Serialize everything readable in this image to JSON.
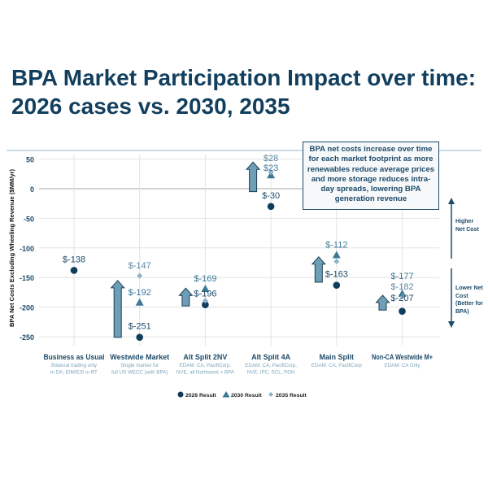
{
  "title_lines": [
    "BPA Market Participation Impact over time:",
    "2026 cases vs. 2030, 2035"
  ],
  "annotation": "BPA net costs increase over time for each market footprint as more renewables reduce average prices and more storage reduces intra-day spreads, lowering BPA generation revenue",
  "side_labels": {
    "higher": "Higher Net Cost",
    "lower": "Lower Net Cost (Better for BPA)"
  },
  "colors": {
    "c2026": "#0f3d5c",
    "c2030": "#3e7896",
    "c2035": "#8fb3c6",
    "arrow": "#6e9fb6",
    "title": "#123f5e"
  },
  "chart_data": {
    "type": "scatter",
    "title": "BPA Market Participation Impact over time: 2026 cases vs. 2030, 2035",
    "ylabel": "BPA Net Costs Excluding Wheeling Revenue ($MM/yr)",
    "ylim": [
      -265,
      55
    ],
    "yticks": [
      50,
      0,
      -50,
      -100,
      -150,
      -200,
      -250
    ],
    "grid": true,
    "legend_position": "bottom",
    "categories": [
      {
        "name": "Business as Usual",
        "sub": [
          "Bilateral trading only",
          "in DA; EIM/EIS in RT"
        ],
        "sub_bold": "Bilateral trading only"
      },
      {
        "name": "Westwide Market",
        "sub": [
          "Single market for",
          "full US WECC (with BPA)"
        ],
        "sub_bold": "Single market"
      },
      {
        "name": "Alt Split 2NV",
        "sub": [
          "EDAM: CA, PacifiCorp,",
          "NVE, all Northwest + BPA"
        ],
        "sub_bold": "EDAM:"
      },
      {
        "name": "Alt Split 4A",
        "sub": [
          "EDAM: CA, PacifiCorp,",
          "NVE, IPC, SCL, PGN"
        ],
        "sub_bold": "EDAM:"
      },
      {
        "name": "Main Split",
        "sub": [
          "EDAM: CA, PacifiCorp"
        ],
        "sub_bold": "EDAM:"
      },
      {
        "name": "Non-CA Westwide M+",
        "sub": [
          "EDAM: CA Only"
        ],
        "sub_bold": "EDAM:"
      }
    ],
    "series": [
      {
        "name": "2026 Result",
        "marker": "circle",
        "values": [
          -138,
          -251,
          -196,
          -30,
          -163,
          -207
        ],
        "labels": [
          "$-138",
          "$-251",
          "$-196",
          "$-30",
          "$-163",
          "$-207"
        ]
      },
      {
        "name": "2030 Result",
        "marker": "triangle",
        "values": [
          null,
          -192,
          -169,
          23,
          -112,
          -177
        ],
        "labels": [
          null,
          "$-192",
          "$-169",
          "$23",
          "$-112",
          "$-177"
        ]
      },
      {
        "name": "2035 Result",
        "marker": "diamond",
        "values": [
          null,
          -147,
          -189,
          28,
          -123,
          -182
        ],
        "labels": [
          null,
          "$-147",
          null,
          "$28",
          null,
          "$-182"
        ]
      }
    ],
    "change_arrows": [
      null,
      [
        -251,
        -155
      ],
      [
        -198,
        -168
      ],
      [
        -5,
        45
      ],
      [
        -158,
        -115
      ],
      [
        -205,
        -180
      ]
    ]
  }
}
